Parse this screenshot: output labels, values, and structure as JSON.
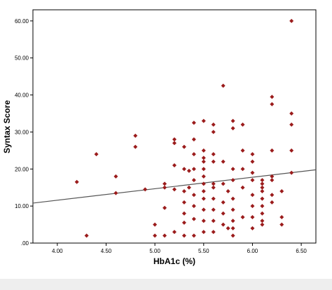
{
  "chart_data": {
    "type": "scatter",
    "xlabel": "HbA1c (%)",
    "ylabel": "Syntax Score",
    "xlim": [
      3.75,
      6.65
    ],
    "ylim": [
      0,
      63
    ],
    "x_ticks": [
      4.0,
      4.5,
      5.0,
      5.5,
      6.0,
      6.5
    ],
    "x_tick_labels": [
      "4.00",
      "4.50",
      "5.00",
      "5.50",
      "6.00",
      "6.50"
    ],
    "y_ticks": [
      0,
      10,
      20,
      30,
      40,
      50,
      60
    ],
    "y_tick_labels": [
      ".00",
      "10.00",
      "20.00",
      "30.00",
      "40.00",
      "50.00",
      "60.00"
    ],
    "grid": false,
    "marker_color": "#9b1c1c",
    "line_color": "#555555",
    "fit_line": {
      "x": [
        3.75,
        6.65
      ],
      "y": [
        10.8,
        19.8
      ]
    },
    "points": [
      [
        4.2,
        16.5
      ],
      [
        4.3,
        2
      ],
      [
        4.4,
        24
      ],
      [
        4.6,
        18
      ],
      [
        4.6,
        13.5
      ],
      [
        4.8,
        29
      ],
      [
        4.8,
        26
      ],
      [
        4.9,
        14.5
      ],
      [
        5.0,
        5
      ],
      [
        5.0,
        2
      ],
      [
        5.1,
        16
      ],
      [
        5.1,
        15
      ],
      [
        5.1,
        9.5
      ],
      [
        5.1,
        2
      ],
      [
        5.2,
        28
      ],
      [
        5.2,
        27
      ],
      [
        5.2,
        21
      ],
      [
        5.2,
        14.5
      ],
      [
        5.2,
        3
      ],
      [
        5.3,
        26
      ],
      [
        5.3,
        20
      ],
      [
        5.3,
        14
      ],
      [
        5.3,
        11
      ],
      [
        5.3,
        8
      ],
      [
        5.3,
        5.5
      ],
      [
        5.3,
        2
      ],
      [
        5.35,
        19.5
      ],
      [
        5.35,
        15
      ],
      [
        5.4,
        32.5
      ],
      [
        5.4,
        28
      ],
      [
        5.4,
        24
      ],
      [
        5.4,
        20
      ],
      [
        5.4,
        17
      ],
      [
        5.4,
        13
      ],
      [
        5.4,
        10
      ],
      [
        5.4,
        6.5
      ],
      [
        5.4,
        2
      ],
      [
        5.5,
        33
      ],
      [
        5.5,
        25
      ],
      [
        5.5,
        23
      ],
      [
        5.5,
        22
      ],
      [
        5.5,
        20
      ],
      [
        5.5,
        18
      ],
      [
        5.5,
        16
      ],
      [
        5.5,
        14
      ],
      [
        5.5,
        12
      ],
      [
        5.5,
        9
      ],
      [
        5.5,
        6
      ],
      [
        5.5,
        3
      ],
      [
        5.6,
        32
      ],
      [
        5.6,
        30
      ],
      [
        5.6,
        24
      ],
      [
        5.6,
        22
      ],
      [
        5.6,
        16
      ],
      [
        5.6,
        15
      ],
      [
        5.6,
        12
      ],
      [
        5.6,
        9
      ],
      [
        5.6,
        6
      ],
      [
        5.6,
        3
      ],
      [
        5.7,
        42.5
      ],
      [
        5.7,
        22
      ],
      [
        5.7,
        16
      ],
      [
        5.7,
        11
      ],
      [
        5.7,
        8
      ],
      [
        5.7,
        5
      ],
      [
        5.75,
        14
      ],
      [
        5.75,
        4
      ],
      [
        5.8,
        33
      ],
      [
        5.8,
        31
      ],
      [
        5.8,
        20
      ],
      [
        5.8,
        17
      ],
      [
        5.8,
        12
      ],
      [
        5.8,
        9
      ],
      [
        5.8,
        6
      ],
      [
        5.8,
        4
      ],
      [
        5.8,
        2
      ],
      [
        5.9,
        32
      ],
      [
        5.9,
        25
      ],
      [
        5.9,
        20
      ],
      [
        5.9,
        15
      ],
      [
        5.9,
        7
      ],
      [
        6.0,
        24
      ],
      [
        6.0,
        22
      ],
      [
        6.0,
        19
      ],
      [
        6.0,
        17
      ],
      [
        6.0,
        13
      ],
      [
        6.0,
        10
      ],
      [
        6.0,
        7
      ],
      [
        6.0,
        4
      ],
      [
        6.1,
        17
      ],
      [
        6.1,
        16
      ],
      [
        6.1,
        15
      ],
      [
        6.1,
        14
      ],
      [
        6.1,
        12
      ],
      [
        6.1,
        10
      ],
      [
        6.1,
        8
      ],
      [
        6.1,
        6
      ],
      [
        6.1,
        5
      ],
      [
        6.2,
        39.5
      ],
      [
        6.2,
        37.5
      ],
      [
        6.2,
        25
      ],
      [
        6.2,
        18
      ],
      [
        6.2,
        17
      ],
      [
        6.2,
        13
      ],
      [
        6.2,
        11
      ],
      [
        6.3,
        14
      ],
      [
        6.3,
        7
      ],
      [
        6.3,
        5
      ],
      [
        6.4,
        60
      ],
      [
        6.4,
        35
      ],
      [
        6.4,
        32
      ],
      [
        6.4,
        25
      ],
      [
        6.4,
        19
      ]
    ]
  }
}
